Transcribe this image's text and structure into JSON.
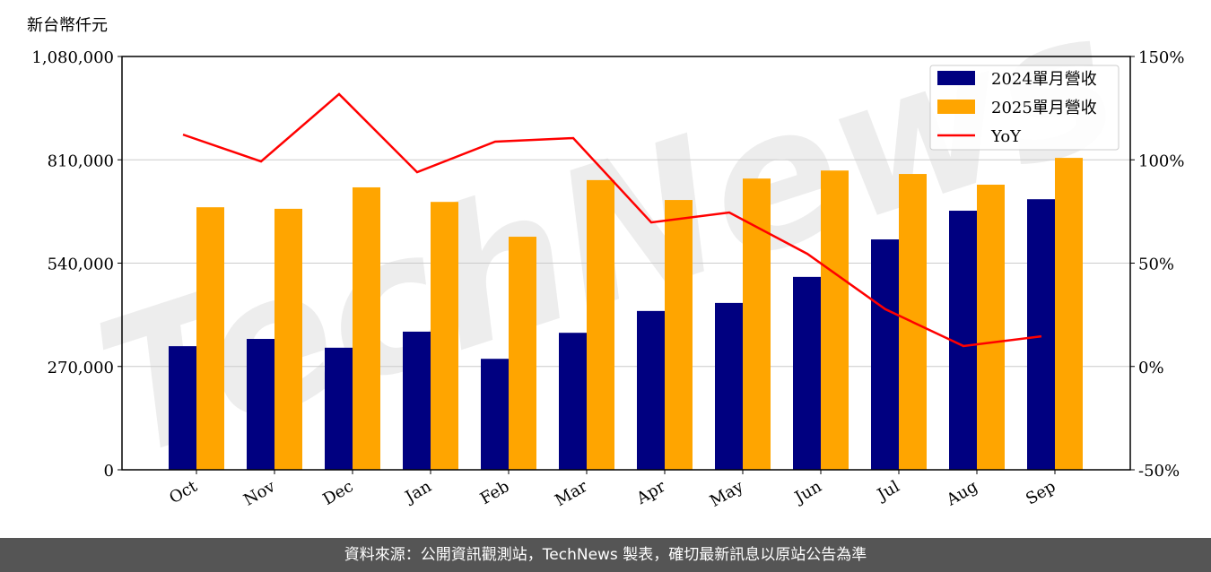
{
  "unit_label": "新台幣仟元",
  "footer": "資料來源：公開資訊觀測站，TechNews 製表，確切最新訊息以原站公告為準",
  "watermark": "TechNews",
  "chart_data": {
    "type": "bar+line",
    "categories": [
      "Oct",
      "Nov",
      "Dec",
      "Jan",
      "Feb",
      "Mar",
      "Apr",
      "May",
      "Jun",
      "Jul",
      "Aug",
      "Sep"
    ],
    "series": [
      {
        "name": "2024單月營收",
        "type": "bar",
        "axis": "left",
        "color": "#000080",
        "values": [
          323000,
          342000,
          319000,
          361000,
          290000,
          358000,
          415000,
          436000,
          504000,
          602000,
          677000,
          707000
        ]
      },
      {
        "name": "2025單月營收",
        "type": "bar",
        "axis": "left",
        "color": "#FFA500",
        "values": [
          686000,
          682000,
          738000,
          700000,
          609000,
          757000,
          705000,
          761000,
          782000,
          773000,
          745000,
          815000
        ]
      },
      {
        "name": "YoY",
        "type": "line",
        "axis": "right",
        "color": "#FF0000",
        "values": [
          112.2,
          99.2,
          131.8,
          94.0,
          108.8,
          110.5,
          69.7,
          74.5,
          54.5,
          27.7,
          9.9,
          14.6
        ]
      }
    ],
    "left_axis": {
      "ylim": [
        0,
        1080000
      ],
      "ticks": [
        0,
        270000,
        540000,
        810000,
        1080000
      ],
      "tick_labels": [
        "0",
        "270,000",
        "540,000",
        "810,000",
        "1,080,000"
      ]
    },
    "right_axis": {
      "ylim": [
        -50,
        150
      ],
      "ticks": [
        -50,
        0,
        50,
        100,
        150
      ],
      "tick_labels": [
        "-50%",
        "0%",
        "50%",
        "100%",
        "150%"
      ]
    },
    "grid": "horizontal",
    "legend": "top-right"
  }
}
